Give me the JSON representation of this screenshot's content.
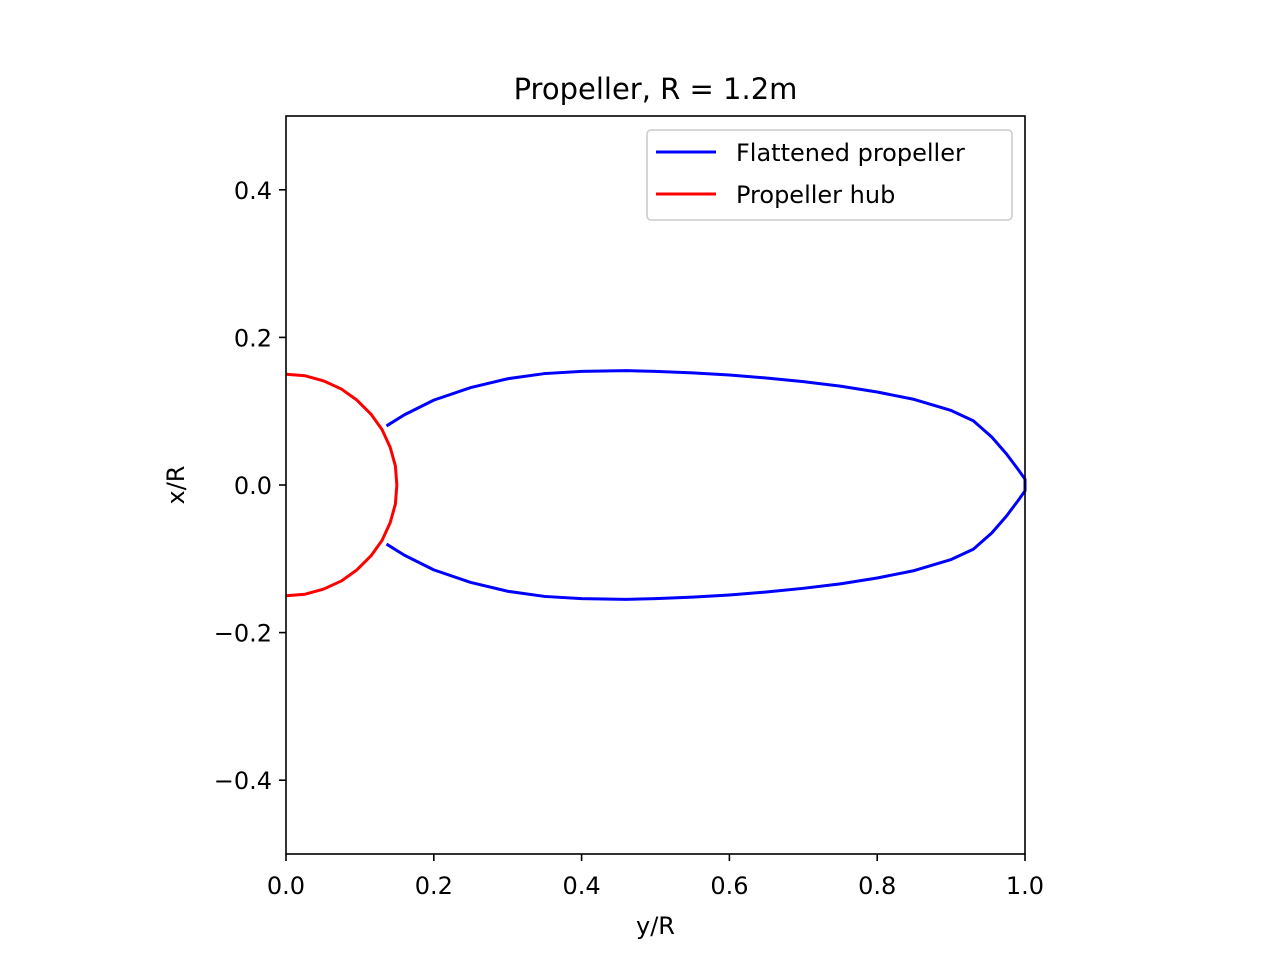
{
  "chart_data": {
    "type": "line",
    "title": "Propeller, R = 1.2m",
    "xlabel": "y/R",
    "ylabel": "x/R",
    "xlim": [
      0.0,
      1.0
    ],
    "ylim": [
      -0.5,
      0.5
    ],
    "xticks": [
      0.0,
      0.2,
      0.4,
      0.6,
      0.8,
      1.0
    ],
    "xtick_labels": [
      "0.0",
      "0.2",
      "0.4",
      "0.6",
      "0.8",
      "1.0"
    ],
    "yticks": [
      -0.4,
      -0.2,
      0.0,
      0.2,
      0.4
    ],
    "ytick_labels": [
      "−0.4",
      "−0.2",
      "0.0",
      "0.2",
      "0.4"
    ],
    "grid": false,
    "legend_position": "top-right",
    "series": [
      {
        "name": "Flattened propeller",
        "color": "#0000ff",
        "x": [
          0.136,
          0.16,
          0.2,
          0.25,
          0.3,
          0.35,
          0.4,
          0.46,
          0.5,
          0.55,
          0.6,
          0.65,
          0.7,
          0.75,
          0.8,
          0.85,
          0.9,
          0.93,
          0.955,
          0.975,
          0.99,
          1.0,
          1.0,
          0.99,
          0.975,
          0.955,
          0.93,
          0.9,
          0.85,
          0.8,
          0.75,
          0.7,
          0.65,
          0.6,
          0.55,
          0.5,
          0.46,
          0.4,
          0.35,
          0.3,
          0.25,
          0.2,
          0.16,
          0.136
        ],
        "y": [
          0.08,
          0.095,
          0.115,
          0.132,
          0.144,
          0.151,
          0.154,
          0.155,
          0.154,
          0.152,
          0.149,
          0.145,
          0.14,
          0.134,
          0.126,
          0.116,
          0.101,
          0.087,
          0.065,
          0.042,
          0.022,
          0.008,
          -0.008,
          -0.022,
          -0.042,
          -0.065,
          -0.087,
          -0.101,
          -0.116,
          -0.126,
          -0.134,
          -0.14,
          -0.145,
          -0.149,
          -0.152,
          -0.154,
          -0.155,
          -0.154,
          -0.151,
          -0.144,
          -0.132,
          -0.115,
          -0.095,
          -0.08
        ]
      },
      {
        "name": "Propeller hub",
        "color": "#ff0000",
        "x": [
          0.0,
          0.026,
          0.051,
          0.075,
          0.096,
          0.115,
          0.13,
          0.141,
          0.148,
          0.15,
          0.148,
          0.141,
          0.13,
          0.115,
          0.096,
          0.075,
          0.051,
          0.026,
          0.0
        ],
        "y": [
          0.15,
          0.148,
          0.141,
          0.13,
          0.115,
          0.096,
          0.075,
          0.051,
          0.026,
          0.0,
          -0.026,
          -0.051,
          -0.075,
          -0.096,
          -0.115,
          -0.13,
          -0.141,
          -0.148,
          -0.15
        ]
      }
    ]
  }
}
